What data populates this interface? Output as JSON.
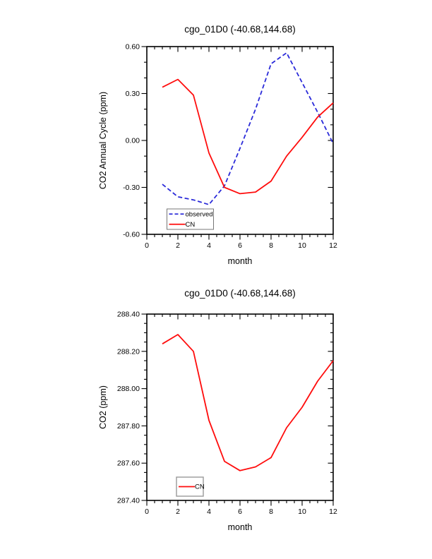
{
  "page": {
    "background": "#ffffff"
  },
  "chart_data": [
    {
      "type": "line",
      "title": "cgo_01D0 (-40.68,144.68)",
      "xlabel": "month",
      "ylabel": "CO2 Annual Cycle (ppm)",
      "xlim": [
        0,
        12
      ],
      "ylim": [
        -0.6,
        0.6
      ],
      "grid": false,
      "legend_position": "bottom-left-inside",
      "x_major_ticks": [
        0,
        2,
        4,
        6,
        8,
        10,
        12
      ],
      "x_tick_labels": [
        "0",
        "2",
        "4",
        "6",
        "8",
        "10",
        "12"
      ],
      "x_minor_step": 0.5,
      "y_major_ticks": [
        -0.6,
        -0.3,
        0.0,
        0.3,
        0.6
      ],
      "y_tick_labels": [
        "-0.60",
        "-0.30",
        "0.00",
        "0.30",
        "0.60"
      ],
      "y_minor_step": 0.1,
      "x": [
        1,
        2,
        3,
        4,
        5,
        6,
        7,
        8,
        9,
        10,
        11,
        12
      ],
      "series": [
        {
          "name": "observed",
          "color": "#2a2ad9",
          "style": "dashed",
          "values": [
            -0.28,
            -0.36,
            -0.38,
            -0.41,
            -0.29,
            -0.05,
            0.2,
            0.49,
            0.56,
            0.37,
            0.18,
            -0.02
          ]
        },
        {
          "name": "CN",
          "color": "#ff0c0c",
          "style": "solid",
          "values": [
            0.34,
            0.39,
            0.29,
            -0.08,
            -0.3,
            -0.34,
            -0.33,
            -0.26,
            -0.1,
            0.02,
            0.15,
            0.24
          ]
        }
      ]
    },
    {
      "type": "line",
      "title": "cgo_01D0 (-40.68,144.68)",
      "xlabel": "month",
      "ylabel": "CO2 (ppm)",
      "xlim": [
        0,
        12
      ],
      "ylim": [
        287.4,
        288.4
      ],
      "grid": false,
      "legend_position": "bottom-left-inside",
      "x_major_ticks": [
        0,
        2,
        4,
        6,
        8,
        10,
        12
      ],
      "x_tick_labels": [
        "0",
        "2",
        "4",
        "6",
        "8",
        "10",
        "12"
      ],
      "x_minor_step": 0.5,
      "y_major_ticks": [
        287.4,
        287.6,
        287.8,
        288.0,
        288.2,
        288.4
      ],
      "y_tick_labels": [
        "287.40",
        "287.60",
        "287.80",
        "288.00",
        "288.20",
        "288.40"
      ],
      "y_minor_step": 0.05,
      "x": [
        1,
        2,
        3,
        4,
        5,
        6,
        7,
        8,
        9,
        10,
        11,
        12
      ],
      "series": [
        {
          "name": "CN",
          "color": "#ff0c0c",
          "style": "solid",
          "values": [
            288.24,
            288.29,
            288.2,
            287.83,
            287.61,
            287.56,
            287.58,
            287.63,
            287.79,
            287.9,
            288.04,
            288.15
          ]
        }
      ]
    }
  ]
}
